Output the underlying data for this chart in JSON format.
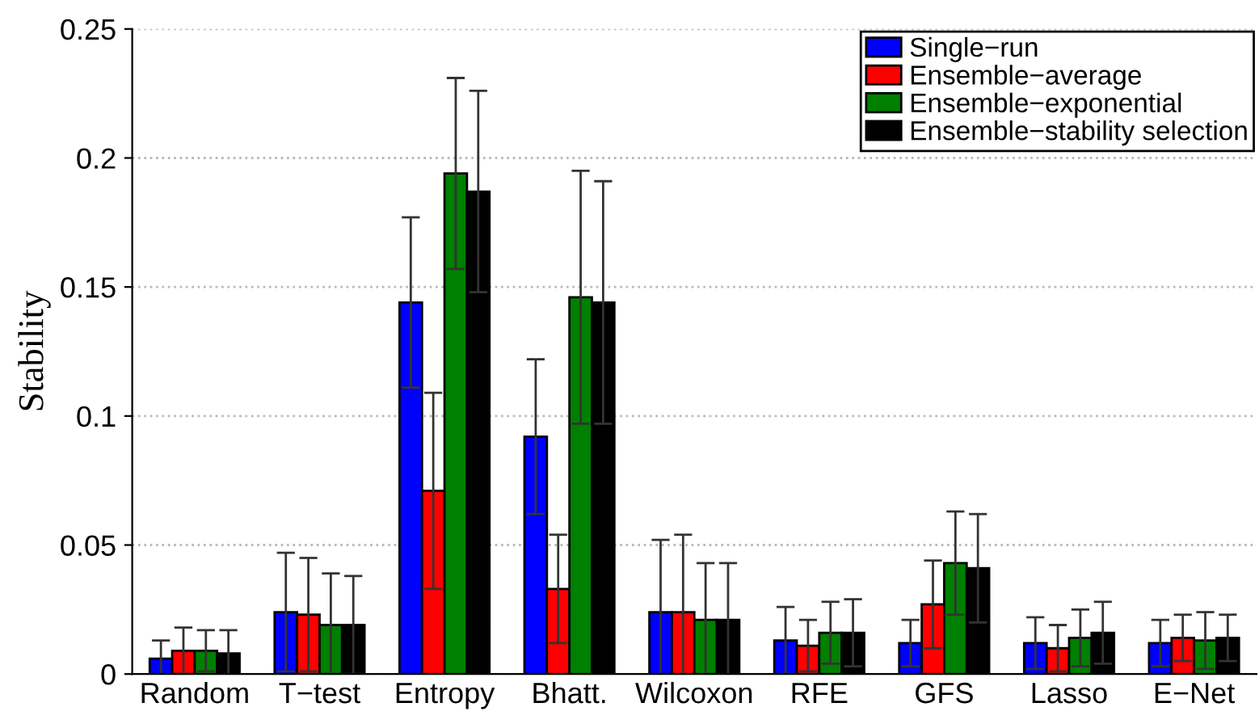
{
  "chart_data": {
    "type": "bar",
    "ylabel": "Stability",
    "categories": [
      "Random",
      "T−test",
      "Entropy",
      "Bhatt.",
      "Wilcoxon",
      "RFE",
      "GFS",
      "Lasso",
      "E−Net"
    ],
    "series": [
      {
        "name": "Single−run",
        "color": "#0000ff",
        "values": [
          0.006,
          0.024,
          0.144,
          0.092,
          0.024,
          0.013,
          0.012,
          0.012,
          0.012
        ],
        "errors": [
          0.007,
          0.023,
          0.033,
          0.03,
          0.028,
          0.013,
          0.009,
          0.01,
          0.009
        ]
      },
      {
        "name": "Ensemble−average",
        "color": "#ff0000",
        "values": [
          0.009,
          0.023,
          0.071,
          0.033,
          0.024,
          0.011,
          0.027,
          0.01,
          0.014
        ],
        "errors": [
          0.009,
          0.022,
          0.038,
          0.021,
          0.03,
          0.01,
          0.017,
          0.009,
          0.009
        ]
      },
      {
        "name": "Ensemble−exponential",
        "color": "#008000",
        "values": [
          0.009,
          0.019,
          0.194,
          0.146,
          0.021,
          0.016,
          0.043,
          0.014,
          0.013
        ],
        "errors": [
          0.008,
          0.02,
          0.037,
          0.049,
          0.022,
          0.012,
          0.02,
          0.011,
          0.011
        ]
      },
      {
        "name": "Ensemble−stability selection",
        "color": "#000000",
        "values": [
          0.008,
          0.019,
          0.187,
          0.144,
          0.021,
          0.016,
          0.041,
          0.016,
          0.014
        ],
        "errors": [
          0.009,
          0.019,
          0.039,
          0.047,
          0.022,
          0.013,
          0.021,
          0.012,
          0.009
        ]
      }
    ],
    "ylim": [
      0,
      0.25
    ],
    "yticks": [
      0,
      0.05,
      0.1,
      0.15,
      0.2,
      0.25
    ],
    "grid": "y",
    "legend": "top right"
  }
}
